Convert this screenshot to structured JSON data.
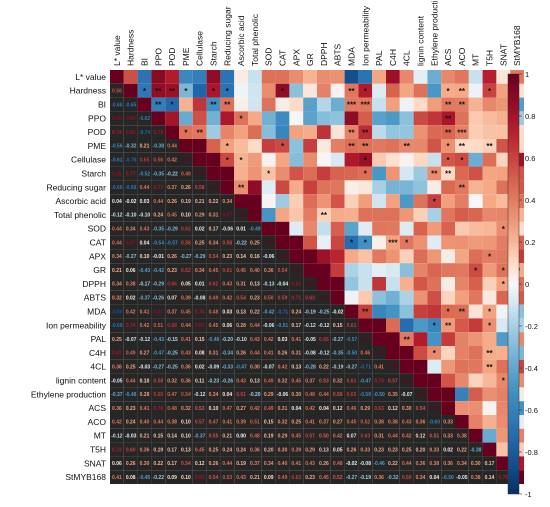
{
  "chart_data": {
    "type": "heatmap",
    "title": "",
    "variables": [
      "L* value",
      "Hardness",
      "BI",
      "PPO",
      "POD",
      "PME",
      "Cellulase",
      "Starch",
      "Reducing sugar",
      "Ascorbic acid",
      "Total phenolic",
      "SOD",
      "CAT",
      "APX",
      "GR",
      "DPPH",
      "ABTS",
      "MDA",
      "Ion permeability",
      "PAL",
      "C4H",
      "4CL",
      "lignin content",
      "Ethylene production",
      "ACS",
      "ACO",
      "MT",
      "T5H",
      "SNAT",
      "StMYB168"
    ],
    "colorbar": {
      "ticks": [
        1,
        0.8,
        0.6,
        0.4,
        0.2,
        0,
        -0.2,
        -0.4,
        -0.6,
        -0.8,
        -1
      ],
      "range": [
        -1,
        1
      ],
      "colormap": "RdBu_r"
    },
    "lower_triangle": "correlation coefficients printed as numbers",
    "upper_triangle": "colored cells with significance asterisks",
    "significance_marks": [
      "*",
      "**",
      "***"
    ],
    "lower_values": [
      [],
      [
        0.56
      ],
      [
        -0.68,
        -0.65
      ],
      [
        0.89,
        0.86,
        -0.62
      ],
      [
        0.74,
        0.82,
        -0.74,
        0.79
      ],
      [
        -0.56,
        -0.32,
        0.21,
        -0.38,
        0.44
      ],
      [
        -0.61,
        -0.76,
        0.65,
        0.56,
        0.42
      ],
      [
        0.86,
        0.77,
        -0.52,
        -0.35,
        -0.22,
        0.49
      ],
      [
        -0.68,
        -0.68,
        0.44,
        0.77,
        0.37,
        0.26,
        0.58
      ],
      [
        0.04,
        -0.02,
        0.03,
        0.44,
        0.26,
        0.19,
        0.21,
        0.22,
        0.34
      ],
      [
        -0.12,
        -0.1,
        -0.1,
        0.24,
        0.45,
        0.1,
        0.29,
        0.31,
        0.87
      ],
      [
        0.44,
        0.34,
        0.43,
        -0.35,
        -0.29,
        0.62,
        0.02,
        0.17,
        -0.06,
        0.01,
        -0.49
      ],
      [
        0.44,
        0.87,
        0.04,
        -0.54,
        -0.57,
        0.58,
        0.25,
        0.34,
        0.58,
        -0.22,
        0.25
      ],
      [
        0.34,
        -0.27,
        0.1,
        -0.01,
        0.26,
        -0.27,
        -0.29,
        0.54,
        0.23,
        0.14,
        0.16,
        -0.06
      ],
      [
        0.21,
        0.06,
        -0.43,
        -0.42,
        0.23,
        0.62,
        0.34,
        0.45,
        0.61,
        0.45,
        0.4,
        0.36,
        0.54
      ],
      [
        0.34,
        0.38,
        -0.17,
        -0.29,
        0.66,
        0.05,
        0.01,
        0.62,
        0.43,
        0.31,
        0.13,
        -0.13,
        -0.04,
        0.82
      ],
      [
        0.32,
        0.02,
        -0.37,
        -0.26,
        0.07,
        0.39,
        -0.08,
        0.49,
        0.42,
        0.54,
        0.23,
        0.5,
        0.59,
        0.71,
        0.63
      ],
      [
        -0.86,
        0.42,
        0.41,
        0.87,
        0.37,
        0.45,
        0.76,
        0.48,
        0.03,
        0.13,
        0.22,
        -0.42,
        -0.71,
        0.24,
        -0.19,
        -0.25,
        -0.02
      ],
      [
        -0.68,
        0.74,
        0.42,
        0.51,
        0.68,
        0.44,
        0.83,
        0.45,
        0.06,
        0.28,
        0.44,
        -0.06,
        -0.51,
        0.17,
        -0.12,
        -0.12,
        0.15,
        0.61
      ],
      [
        0.25,
        -0.07,
        -0.12,
        -0.43,
        -0.15,
        0.41,
        0.15,
        -0.48,
        -0.2,
        -0.1,
        0.43,
        0.42,
        0.03,
        0.41,
        -0.05,
        0.65,
        -0.27,
        -0.57
      ],
      [
        0.82,
        0.49,
        0.27,
        -0.47,
        -0.25,
        0.43,
        0.08,
        0.31,
        -0.34,
        0.26,
        0.44,
        0.41,
        0.26,
        0.31,
        -0.08,
        -0.12,
        -0.35,
        -0.5,
        0.46
      ],
      [
        0.36,
        0.25,
        -0.03,
        -0.27,
        -0.25,
        0.36,
        0.02,
        -0.09,
        -0.33,
        -0.47,
        0.3,
        -0.07,
        0.42,
        0.13,
        -0.28,
        0.22,
        -0.19,
        -0.27,
        -0.71,
        0.41
      ],
      [
        -0.05,
        0.44,
        0.1,
        0.58,
        0.32,
        0.36,
        0.11,
        -0.23,
        -0.26,
        0.43,
        0.13,
        0.49,
        0.32,
        0.45,
        0.37,
        0.53,
        0.32,
        0.61,
        -0.47,
        0.74,
        0.57
      ],
      [
        -0.37,
        -0.48,
        0.28,
        0.65,
        0.47,
        0.54,
        -0.12,
        0.34,
        0.04,
        0.61,
        -0.2,
        0.29,
        -0.06,
        0.3,
        0.48,
        0.44,
        0.56,
        0.65,
        -0.58,
        -0.5,
        0.35,
        -0.07
      ],
      [
        0.36,
        0.23,
        0.41,
        0.78,
        0.48,
        0.32,
        0.53,
        0.1,
        0.47,
        0.27,
        0.42,
        0.49,
        0.31,
        0.04,
        0.42,
        0.04,
        0.12,
        0.46,
        0.29,
        0.63,
        0.12,
        0.3,
        0.54
      ],
      [
        0.42,
        0.24,
        0.4,
        0.44,
        0.38,
        0.1,
        0.57,
        0.47,
        0.41,
        0.39,
        0.51,
        0.15,
        0.32,
        0.25,
        0.41,
        0.37,
        0.27,
        0.45,
        0.52,
        0.38,
        0.38,
        0.43,
        0.36,
        -0.6,
        0.33
      ],
      [
        -0.12,
        -0.03,
        0.21,
        0.15,
        0.14,
        0.1,
        -0.37,
        0.55,
        0.21,
        0.0,
        0.48,
        0.19,
        0.29,
        0.45,
        0.57,
        0.5,
        0.42,
        0.07,
        0.63,
        0.31,
        0.44,
        0.42,
        0.12,
        0.51,
        0.33,
        0.38
      ],
      [
        0.73,
        0.6,
        0.36,
        0.19,
        0.17,
        0.13,
        0.45,
        0.25,
        0.24,
        0.24,
        0.36,
        0.2,
        0.3,
        0.39,
        0.29,
        0.13,
        0.05,
        0.26,
        0.33,
        0.23,
        0.23,
        0.25,
        0.2,
        0.33,
        0.02,
        0.22,
        -0.38
      ],
      [
        0.06,
        0.26,
        0.3,
        0.22,
        0.17,
        0.54,
        0.12,
        0.26,
        0.44,
        0.19,
        0.37,
        0.34,
        0.4,
        0.41,
        0.43,
        0.26,
        0.48,
        -0.02,
        -0.08,
        -0.46,
        0.22,
        0.44,
        0.36,
        0.38,
        0.36,
        0.34,
        0.3,
        0.17
      ],
      [
        0.41,
        0.08,
        -0.45,
        -0.22,
        0.09,
        0.1,
        0.81,
        0.54,
        0.53,
        0.43,
        0.21,
        0.09,
        0.49,
        0.63,
        0.23,
        0.45,
        0.52,
        -0.27,
        -0.19,
        0.36,
        -0.32,
        0.6,
        0.34,
        0.04,
        -0.5,
        -0.05,
        0.38,
        0.14,
        0.76
      ]
    ],
    "upper_stars": [
      [
        "1,2",
        "*"
      ],
      [
        "1,3",
        "**"
      ],
      [
        "1,4",
        "**"
      ],
      [
        "1,5",
        "*"
      ],
      [
        "1,7",
        "*"
      ],
      [
        "1,8",
        "*"
      ],
      [
        "1,12",
        "*"
      ],
      [
        "1,17",
        "**"
      ],
      [
        "1,18",
        "*"
      ],
      [
        "1,24",
        "*"
      ],
      [
        "1,25",
        "**"
      ],
      [
        "1,27",
        "*"
      ],
      [
        "2,3",
        "**"
      ],
      [
        "2,4",
        "*"
      ],
      [
        "2,7",
        "**"
      ],
      [
        "2,8",
        "**"
      ],
      [
        "2,17",
        "***"
      ],
      [
        "2,18",
        "***"
      ],
      [
        "2,24",
        "**"
      ],
      [
        "2,25",
        "**"
      ],
      [
        "3,9",
        "*"
      ],
      [
        "3,24",
        "**"
      ],
      [
        "4,5",
        "*"
      ],
      [
        "4,6",
        "**"
      ],
      [
        "4,17",
        "**"
      ],
      [
        "4,18",
        "**"
      ],
      [
        "4,24",
        "**"
      ],
      [
        "4,25",
        "***"
      ],
      [
        "5,8",
        "*"
      ],
      [
        "5,12",
        "*"
      ],
      [
        "5,17",
        "**"
      ],
      [
        "5,18",
        "**"
      ],
      [
        "5,21",
        "**"
      ],
      [
        "5,24",
        "*"
      ],
      [
        "5,25",
        "**"
      ],
      [
        "5,27",
        "**"
      ],
      [
        "6,8",
        "*"
      ],
      [
        "6,9",
        "*"
      ],
      [
        "6,18",
        "*"
      ],
      [
        "6,24",
        "*"
      ],
      [
        "6,25",
        "*"
      ],
      [
        "7,11",
        "*"
      ],
      [
        "7,18",
        "*"
      ],
      [
        "7,23",
        "**"
      ],
      [
        "7,24",
        "**"
      ],
      [
        "8,9",
        "**"
      ],
      [
        "8,25",
        "**"
      ],
      [
        "9,23",
        "*"
      ],
      [
        "10,15",
        "**"
      ],
      [
        "11,28",
        "*"
      ],
      [
        "12,17",
        "*"
      ],
      [
        "12,18",
        "*"
      ],
      [
        "12,20",
        "***"
      ],
      [
        "12,21",
        "*"
      ],
      [
        "13,27",
        "*"
      ],
      [
        "14,26",
        "*"
      ],
      [
        "14,28",
        "*"
      ],
      [
        "14,29",
        "**"
      ],
      [
        "15,28",
        "*"
      ],
      [
        "17,18",
        "**"
      ],
      [
        "17,24",
        "*"
      ],
      [
        "17,25",
        "**"
      ],
      [
        "17,27",
        "*"
      ],
      [
        "18,23",
        "*"
      ],
      [
        "18,24",
        "**"
      ],
      [
        "18,27",
        "*"
      ],
      [
        "19,21",
        "**"
      ],
      [
        "20,23",
        "*"
      ],
      [
        "20,27",
        "**"
      ],
      [
        "21,27",
        "**"
      ],
      [
        "22,28",
        "*"
      ]
    ]
  }
}
